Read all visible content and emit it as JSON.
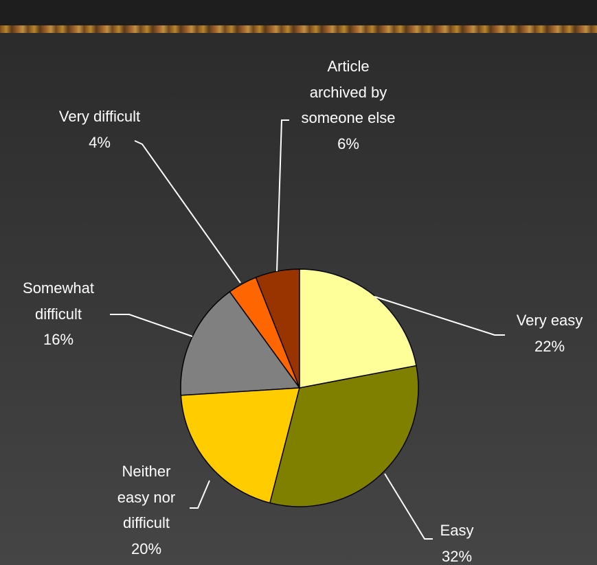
{
  "chart_data": {
    "type": "pie",
    "categories": [
      "Very easy",
      "Easy",
      "Neither easy nor difficult",
      "Somewhat difficult",
      "Very difficult",
      "Article archived by someone else"
    ],
    "values": [
      22,
      32,
      20,
      16,
      4,
      6
    ],
    "value_labels": [
      "22%",
      "32%",
      "20%",
      "16%",
      "4%",
      "6%"
    ],
    "colors": [
      "#ffff99",
      "#808000",
      "#ffcc00",
      "#808080",
      "#ff6600",
      "#993300"
    ]
  }
}
